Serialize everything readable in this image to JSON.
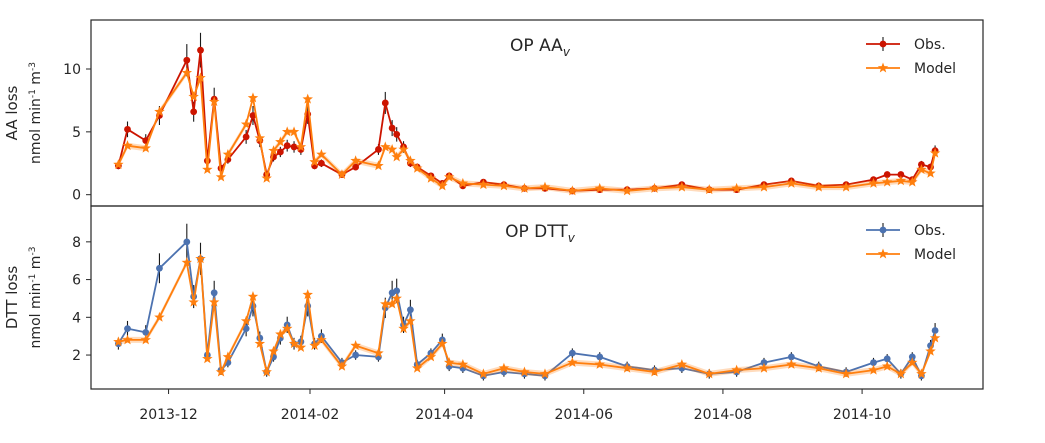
{
  "chart_data": [
    {
      "type": "line",
      "title": "OP AA",
      "title_subscript": "v",
      "ylabel": "AA loss",
      "ylabel_line2": "nmol min",
      "ylabel_exp1": "-1",
      "ylabel_mid": " m",
      "ylabel_exp2": "-3",
      "ylim": [
        -0.9,
        13.9
      ],
      "yticks": [
        0,
        5,
        10
      ],
      "legend_position": "top-right",
      "series": [
        {
          "name": "Obs.",
          "color": "#cc1400",
          "marker": "circle",
          "error_bars": true,
          "x": [
            "2013-11-09",
            "2013-11-13",
            "2013-11-21",
            "2013-11-27",
            "2013-12-09",
            "2013-12-12",
            "2013-12-15",
            "2013-12-18",
            "2013-12-21",
            "2013-12-24",
            "2013-12-27",
            "2014-01-04",
            "2014-01-07",
            "2014-01-10",
            "2014-01-13",
            "2014-01-16",
            "2014-01-19",
            "2014-01-22",
            "2014-01-25",
            "2014-01-28",
            "2014-01-31",
            "2014-02-03",
            "2014-02-06",
            "2014-02-15",
            "2014-02-21",
            "2014-03-03",
            "2014-03-06",
            "2014-03-09",
            "2014-03-11",
            "2014-03-14",
            "2014-03-17",
            "2014-03-20",
            "2014-03-26",
            "2014-03-31",
            "2014-04-03",
            "2014-04-09",
            "2014-04-18",
            "2014-04-27",
            "2014-05-06",
            "2014-05-15",
            "2014-05-27",
            "2014-06-08",
            "2014-06-20",
            "2014-07-02",
            "2014-07-14",
            "2014-07-26",
            "2014-08-07",
            "2014-08-19",
            "2014-08-31",
            "2014-09-12",
            "2014-09-24",
            "2014-10-06",
            "2014-10-12",
            "2014-10-18",
            "2014-10-23",
            "2014-10-27",
            "2014-10-31",
            "2014-11-02"
          ],
          "y": [
            2.3,
            5.2,
            4.3,
            6.3,
            10.7,
            6.6,
            11.5,
            2.7,
            7.6,
            2.1,
            2.8,
            4.6,
            6.3,
            4.3,
            1.6,
            3.0,
            3.4,
            3.9,
            3.8,
            3.6,
            6.4,
            2.3,
            2.5,
            1.6,
            2.2,
            3.6,
            7.3,
            5.3,
            4.8,
            3.8,
            2.5,
            2.2,
            1.5,
            0.9,
            1.5,
            0.7,
            1.0,
            0.8,
            0.5,
            0.5,
            0.3,
            0.4,
            0.4,
            0.5,
            0.8,
            0.4,
            0.4,
            0.8,
            1.1,
            0.7,
            0.8,
            1.2,
            1.6,
            1.6,
            1.2,
            2.4,
            2.2,
            3.5
          ]
        },
        {
          "name": "Model",
          "color": "#ff7f0e",
          "marker": "star",
          "uncertainty_band": true,
          "x": [
            "2013-11-09",
            "2013-11-13",
            "2013-11-21",
            "2013-11-27",
            "2013-12-09",
            "2013-12-12",
            "2013-12-15",
            "2013-12-18",
            "2013-12-21",
            "2013-12-24",
            "2013-12-27",
            "2014-01-04",
            "2014-01-07",
            "2014-01-10",
            "2014-01-13",
            "2014-01-16",
            "2014-01-19",
            "2014-01-22",
            "2014-01-25",
            "2014-01-28",
            "2014-01-31",
            "2014-02-03",
            "2014-02-06",
            "2014-02-15",
            "2014-02-21",
            "2014-03-03",
            "2014-03-06",
            "2014-03-09",
            "2014-03-11",
            "2014-03-14",
            "2014-03-17",
            "2014-03-20",
            "2014-03-26",
            "2014-03-31",
            "2014-04-03",
            "2014-04-09",
            "2014-04-18",
            "2014-04-27",
            "2014-05-06",
            "2014-05-15",
            "2014-05-27",
            "2014-06-08",
            "2014-06-20",
            "2014-07-02",
            "2014-07-14",
            "2014-07-26",
            "2014-08-07",
            "2014-08-19",
            "2014-08-31",
            "2014-09-12",
            "2014-09-24",
            "2014-10-06",
            "2014-10-12",
            "2014-10-18",
            "2014-10-23",
            "2014-10-27",
            "2014-10-31",
            "2014-11-02"
          ],
          "y": [
            2.4,
            3.9,
            3.7,
            6.6,
            9.7,
            7.8,
            9.3,
            2.0,
            7.4,
            1.4,
            3.2,
            5.6,
            7.7,
            4.5,
            1.3,
            3.5,
            4.2,
            5.0,
            5.0,
            3.8,
            7.6,
            2.6,
            3.2,
            1.6,
            2.7,
            2.3,
            3.8,
            3.6,
            3.0,
            3.6,
            2.7,
            2.1,
            1.3,
            0.7,
            1.4,
            0.9,
            0.8,
            0.7,
            0.5,
            0.6,
            0.3,
            0.5,
            0.3,
            0.5,
            0.6,
            0.4,
            0.5,
            0.6,
            0.9,
            0.6,
            0.6,
            0.9,
            1.0,
            1.1,
            1.0,
            2.0,
            1.7,
            3.3
          ]
        }
      ]
    },
    {
      "type": "line",
      "title": "OP DTT",
      "title_subscript": "v",
      "ylabel": "DTT loss",
      "ylabel_line2": "nmol min",
      "ylabel_exp1": "-1",
      "ylabel_mid": " m",
      "ylabel_exp2": "-3",
      "ylim": [
        0.2,
        9.9
      ],
      "yticks": [
        2,
        4,
        6,
        8
      ],
      "legend_position": "top-right",
      "series": [
        {
          "name": "Obs.",
          "color": "#4c72b0",
          "marker": "circle",
          "error_bars": true,
          "x": [
            "2013-11-09",
            "2013-11-13",
            "2013-11-21",
            "2013-11-27",
            "2013-12-09",
            "2013-12-12",
            "2013-12-15",
            "2013-12-18",
            "2013-12-21",
            "2013-12-24",
            "2013-12-27",
            "2014-01-04",
            "2014-01-07",
            "2014-01-10",
            "2014-01-13",
            "2014-01-16",
            "2014-01-19",
            "2014-01-22",
            "2014-01-25",
            "2014-01-28",
            "2014-01-31",
            "2014-02-03",
            "2014-02-06",
            "2014-02-15",
            "2014-02-21",
            "2014-03-03",
            "2014-03-06",
            "2014-03-09",
            "2014-03-11",
            "2014-03-14",
            "2014-03-17",
            "2014-03-20",
            "2014-03-26",
            "2014-03-31",
            "2014-04-03",
            "2014-04-09",
            "2014-04-18",
            "2014-04-27",
            "2014-05-06",
            "2014-05-15",
            "2014-05-27",
            "2014-06-08",
            "2014-06-20",
            "2014-07-02",
            "2014-07-14",
            "2014-07-26",
            "2014-08-07",
            "2014-08-19",
            "2014-08-31",
            "2014-09-12",
            "2014-09-24",
            "2014-10-06",
            "2014-10-12",
            "2014-10-18",
            "2014-10-23",
            "2014-10-27",
            "2014-10-31",
            "2014-11-02"
          ],
          "y": [
            2.6,
            3.4,
            3.2,
            6.6,
            8.0,
            5.1,
            7.1,
            2.0,
            5.3,
            1.2,
            1.6,
            3.4,
            4.6,
            2.9,
            1.1,
            1.9,
            2.9,
            3.6,
            2.6,
            2.7,
            4.6,
            2.6,
            3.0,
            1.6,
            2.0,
            1.9,
            4.5,
            5.3,
            5.4,
            3.6,
            4.4,
            1.5,
            2.1,
            2.8,
            1.4,
            1.3,
            0.9,
            1.1,
            1.0,
            0.9,
            2.1,
            1.9,
            1.4,
            1.2,
            1.3,
            1.0,
            1.1,
            1.6,
            1.9,
            1.4,
            1.1,
            1.6,
            1.8,
            1.0,
            1.9,
            0.9,
            2.5,
            3.3
          ]
        },
        {
          "name": "Model",
          "color": "#ff7f0e",
          "marker": "star",
          "uncertainty_band": true,
          "x": [
            "2013-11-09",
            "2013-11-13",
            "2013-11-21",
            "2013-11-27",
            "2013-12-09",
            "2013-12-12",
            "2013-12-15",
            "2013-12-18",
            "2013-12-21",
            "2013-12-24",
            "2013-12-27",
            "2014-01-04",
            "2014-01-07",
            "2014-01-10",
            "2014-01-13",
            "2014-01-16",
            "2014-01-19",
            "2014-01-22",
            "2014-01-25",
            "2014-01-28",
            "2014-01-31",
            "2014-02-03",
            "2014-02-06",
            "2014-02-15",
            "2014-02-21",
            "2014-03-03",
            "2014-03-06",
            "2014-03-09",
            "2014-03-11",
            "2014-03-14",
            "2014-03-17",
            "2014-03-20",
            "2014-03-26",
            "2014-03-31",
            "2014-04-03",
            "2014-04-09",
            "2014-04-18",
            "2014-04-27",
            "2014-05-06",
            "2014-05-15",
            "2014-05-27",
            "2014-06-08",
            "2014-06-20",
            "2014-07-02",
            "2014-07-14",
            "2014-07-26",
            "2014-08-07",
            "2014-08-19",
            "2014-08-31",
            "2014-09-12",
            "2014-09-24",
            "2014-10-06",
            "2014-10-12",
            "2014-10-18",
            "2014-10-23",
            "2014-10-27",
            "2014-10-31",
            "2014-11-02"
          ],
          "y": [
            2.7,
            2.8,
            2.8,
            4.0,
            6.9,
            4.8,
            7.1,
            1.8,
            4.8,
            1.1,
            1.9,
            3.8,
            5.1,
            2.6,
            1.1,
            2.2,
            3.1,
            3.4,
            2.6,
            2.4,
            5.2,
            2.5,
            2.8,
            1.4,
            2.5,
            2.1,
            4.7,
            4.7,
            5.0,
            3.4,
            3.8,
            1.3,
            1.9,
            2.6,
            1.6,
            1.5,
            1.0,
            1.3,
            1.1,
            1.0,
            1.6,
            1.5,
            1.3,
            1.1,
            1.5,
            1.0,
            1.2,
            1.3,
            1.5,
            1.3,
            1.0,
            1.2,
            1.4,
            1.0,
            1.6,
            1.0,
            2.2,
            2.9
          ]
        }
      ]
    }
  ],
  "xaxis": {
    "ticks": [
      "2013-12-01",
      "2014-02-01",
      "2014-04-01",
      "2014-06-01",
      "2014-08-01",
      "2014-10-01"
    ],
    "tick_labels": [
      "2013-12",
      "2014-02",
      "2014-04",
      "2014-06",
      "2014-08",
      "2014-10"
    ],
    "range": [
      "2013-10-28",
      "2014-11-23"
    ]
  }
}
